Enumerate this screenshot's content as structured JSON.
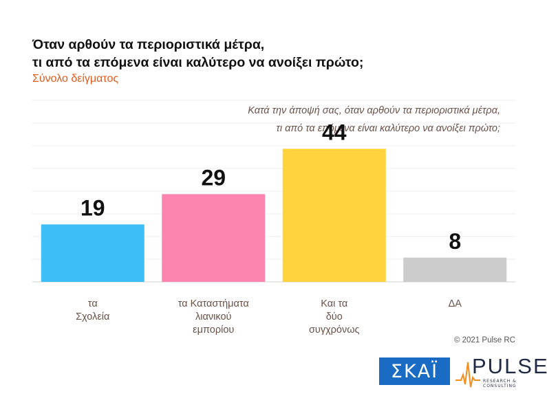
{
  "chart_data": {
    "type": "bar",
    "title": "Όταν αρθούν τα περιοριστικά μέτρα,\nτι από τα επόμενα είναι καλύτερο να ανοίξει πρώτο;",
    "subtitle": "Σύνολο δείγματος",
    "question": "Κατά την άποψή σας, όταν αρθούν τα περιοριστικά μέτρα,\nτι από τα επόμενα είναι καλύτερο να ανοίξει πρώτο;",
    "categories": [
      [
        "τα",
        "Σχολεία"
      ],
      [
        "τα Καταστήματα",
        "λιανικού",
        "εμπορίου"
      ],
      [
        "Και τα",
        "δύο",
        "συγχρόνως"
      ],
      [
        "ΔΑ"
      ]
    ],
    "values": [
      19,
      29,
      44,
      8
    ],
    "colors": [
      "#3dbff5",
      "#fd83b1",
      "#ffd33d",
      "#cccccc"
    ],
    "ylim": [
      0,
      60
    ],
    "grid": true,
    "legend": "none"
  },
  "copyright": "© 2021 Pulse RC",
  "logos": {
    "skai": "ΣΚΑΪ",
    "pulse": "PULSE",
    "pulse_tagline": "RESEARCH & CONSULTING"
  }
}
